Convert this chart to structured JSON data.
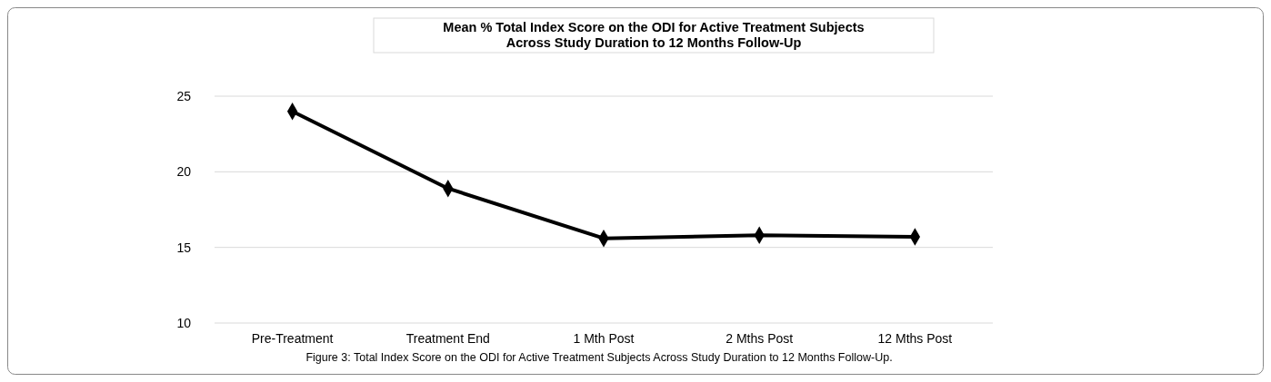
{
  "chart_data": {
    "type": "line",
    "title": "Mean % Total Index Score on the ODI for Active Treatment Subjects\nAcross Study Duration to 12 Months Follow-Up",
    "categories": [
      "Pre-Treatment",
      "Treatment End",
      "1 Mth Post",
      "2 Mths Post",
      "12 Mths Post"
    ],
    "series": [
      {
        "color": "#000000",
        "values": [
          24.0,
          18.9,
          15.6,
          15.8,
          15.7
        ]
      }
    ],
    "ylim": [
      10,
      25
    ],
    "yticks": [
      10,
      15,
      20,
      25
    ],
    "grid": "y",
    "marker": "diamond",
    "line_style": "solid",
    "annotations": [
      "Figure 3: Total Index Score on the ODI for Active Treatment Subjects Across Study Duration to 12 Months Follow-Up."
    ]
  }
}
